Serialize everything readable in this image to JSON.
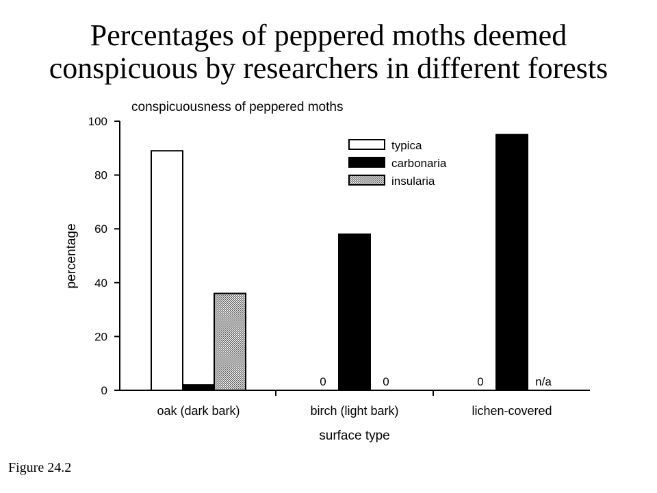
{
  "slide": {
    "title_line1": "Percentages of peppered moths deemed",
    "title_line2": "conspicuous by researchers in different forests",
    "figure_label": "Figure 24.2"
  },
  "chart_data": {
    "type": "bar",
    "title": "conspicuousness of peppered moths",
    "xlabel": "surface type",
    "ylabel": "percentage",
    "ylim": [
      0,
      100
    ],
    "yticks": [
      0,
      20,
      40,
      60,
      80,
      100
    ],
    "categories": [
      "oak (dark bark)",
      "birch (light bark)",
      "lichen-covered"
    ],
    "series": [
      {
        "name": "typica",
        "values": [
          89,
          0,
          0
        ],
        "zero_labels": [
          "",
          "0",
          "0"
        ],
        "fill": "white"
      },
      {
        "name": "carbonaria",
        "values": [
          2,
          58,
          95
        ],
        "zero_labels": [
          "",
          "",
          ""
        ],
        "fill": "black"
      },
      {
        "name": "insularia",
        "values": [
          36,
          0,
          null
        ],
        "zero_labels": [
          "",
          "0",
          "n/a"
        ],
        "fill": "stipple"
      }
    ],
    "legend_position": "top-right",
    "grid": false,
    "colors": {
      "bar_outline": "#000000",
      "carbonaria": "#000000",
      "typica": "#ffffff",
      "insularia_pattern": "#7a7a7a"
    }
  }
}
